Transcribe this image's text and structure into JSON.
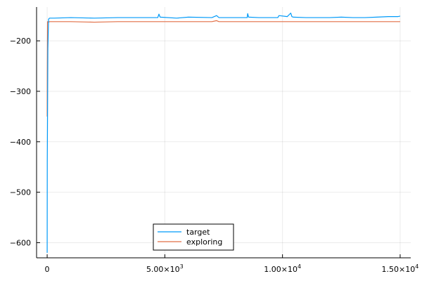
{
  "chart_data": {
    "type": "line",
    "title": "",
    "xlabel": "",
    "ylabel": "",
    "xlim": [
      -450,
      15450
    ],
    "ylim": [
      -630,
      -133
    ],
    "grid": true,
    "legend_position": "bottom-center",
    "colors": {
      "target": "#009af9",
      "exploring": "#e26f46"
    },
    "y_ticks": [
      {
        "value": -600,
        "label": "−600"
      },
      {
        "value": -500,
        "label": "−500"
      },
      {
        "value": -400,
        "label": "−400"
      },
      {
        "value": -300,
        "label": "−300"
      },
      {
        "value": -200,
        "label": "−200"
      }
    ],
    "x_ticks": [
      {
        "value": 0,
        "label": "0"
      },
      {
        "value": 5000,
        "label": "5.00×10",
        "exp": "3"
      },
      {
        "value": 10000,
        "label": "1.00×10",
        "exp": "4"
      },
      {
        "value": 15000,
        "label": "1.50×10",
        "exp": "4"
      }
    ],
    "series": [
      {
        "name": "target",
        "x": [
          0,
          5,
          15,
          30,
          60,
          100,
          300,
          1000,
          2000,
          3000,
          4000,
          4700,
          4750,
          4800,
          5500,
          6000,
          7000,
          7200,
          7300,
          8000,
          8500,
          8520,
          8560,
          9000,
          9800,
          9850,
          10200,
          10350,
          10400,
          10450,
          11000,
          12000,
          12500,
          13000,
          13500,
          14000,
          14500,
          14900,
          15000
        ],
        "y": [
          -620,
          -440,
          -355,
          -215,
          -157,
          -155,
          -155,
          -154,
          -155,
          -154,
          -154,
          -154,
          -147,
          -153,
          -155,
          -153,
          -154,
          -150,
          -154,
          -154,
          -154,
          -146,
          -153,
          -154,
          -154,
          -150,
          -152,
          -145,
          -152,
          -153,
          -154,
          -154,
          -153,
          -154,
          -154,
          -153,
          -152,
          -152,
          -151
        ]
      },
      {
        "name": "exploring",
        "x": [
          0,
          5,
          15,
          30,
          60,
          100,
          1000,
          2000,
          3000,
          4000,
          5000,
          6000,
          7000,
          7200,
          7300,
          8000,
          9000,
          10000,
          11000,
          12000,
          13000,
          14000,
          15000
        ],
        "y": [
          -350,
          -260,
          -162,
          -162,
          -163,
          -162,
          -162,
          -163,
          -162,
          -162,
          -162,
          -162,
          -162,
          -160,
          -162,
          -162,
          -162,
          -162,
          -162,
          -162,
          -162,
          -162,
          -162
        ]
      }
    ]
  }
}
